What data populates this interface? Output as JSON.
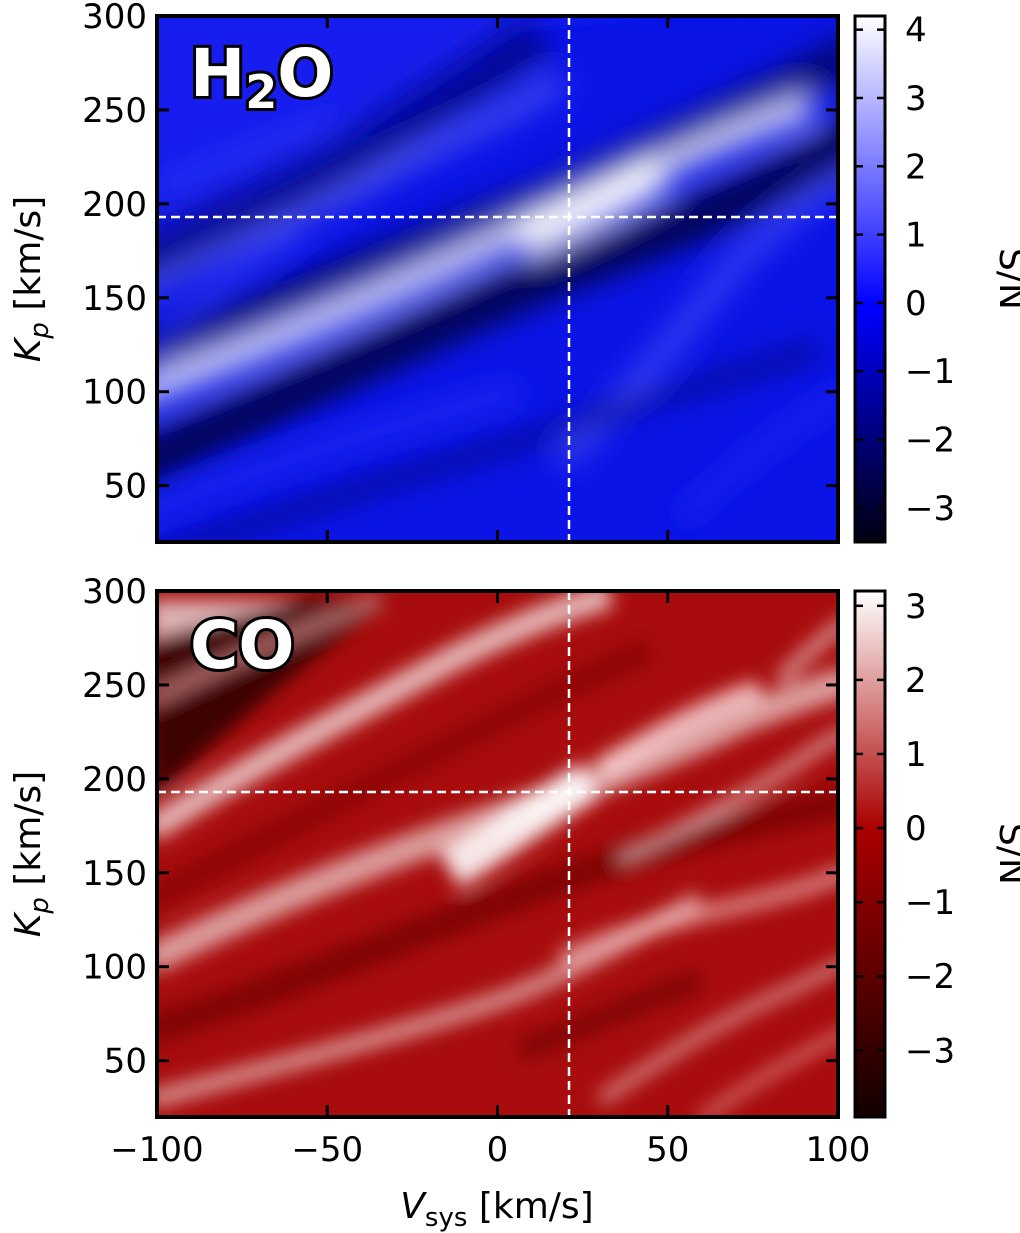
{
  "chart_data": [
    {
      "type": "heatmap",
      "molecule": {
        "main": "H",
        "sub": "2",
        "tail": "O"
      },
      "xlabel": {
        "main": "V",
        "sub": "sys",
        "unit": " [km/s]"
      },
      "ylabel": {
        "main": "K",
        "sub": "p",
        "unit": " [km/s]"
      },
      "xlim": [
        -100,
        100
      ],
      "ylim": [
        20,
        300
      ],
      "xticks": [
        -100,
        -50,
        0,
        50,
        100
      ],
      "yticks": [
        50,
        100,
        150,
        200,
        250,
        300
      ],
      "colorbar": {
        "label": "S/N",
        "range": [
          -3.5,
          4.2
        ],
        "ticks": [
          -3,
          -2,
          -1,
          0,
          1,
          2,
          3,
          4
        ]
      },
      "colors": {
        "low": "#000010",
        "mid": "#0000ff",
        "high": "#ffffff"
      },
      "marker": {
        "vsys": 21,
        "kp": 193
      },
      "peak": {
        "vsys": 22,
        "kp": 198,
        "snr": 4.2
      },
      "x_tick_labels_shown": false
    },
    {
      "type": "heatmap",
      "molecule": {
        "main": "CO",
        "sub": "",
        "tail": ""
      },
      "xlabel": {
        "main": "V",
        "sub": "sys",
        "unit": " [km/s]"
      },
      "ylabel": {
        "main": "K",
        "sub": "p",
        "unit": " [km/s]"
      },
      "xlim": [
        -100,
        100
      ],
      "ylim": [
        20,
        300
      ],
      "xticks": [
        -100,
        -50,
        0,
        50,
        100
      ],
      "yticks": [
        50,
        100,
        150,
        200,
        250,
        300
      ],
      "colorbar": {
        "label": "S/N",
        "range": [
          -3.9,
          3.2
        ],
        "ticks": [
          -3,
          -2,
          -1,
          0,
          1,
          2,
          3
        ]
      },
      "colors": {
        "low": "#120000",
        "mid": "#aa0000",
        "high": "#ffffff"
      },
      "marker": {
        "vsys": 21,
        "kp": 193
      },
      "peak": {
        "vsys": 12,
        "kp": 185,
        "snr": 3.2
      },
      "x_tick_labels_shown": true
    }
  ]
}
